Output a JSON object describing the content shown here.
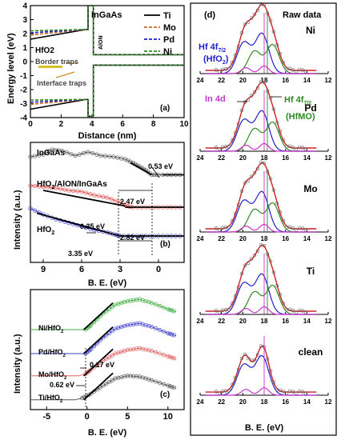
{
  "chart_data": [
    {
      "type": "line",
      "panel_label": "(a)",
      "xlabel": "Distance (nm)",
      "ylabel": "Energy level (eV)",
      "xlim": [
        0,
        10
      ],
      "ylim": [
        -4,
        4
      ],
      "x_ticks": [
        "0",
        "2",
        "4",
        "6",
        "8",
        "10"
      ],
      "y_ticks": [
        "-4",
        "-3",
        "-2",
        "-1",
        "0",
        "1",
        "2",
        "3",
        "4"
      ],
      "region_labels": [
        "HfO2",
        "InGaAs",
        "AlON"
      ],
      "annotations": [
        "Border traps",
        "Interface traps"
      ],
      "legend": {
        "placement": "top-right",
        "entries": [
          "Ti",
          "Mo",
          "Pd",
          "Ni"
        ]
      },
      "series": [
        {
          "name": "Ti",
          "color": "#000000",
          "dash": "solid",
          "cb": [
            [
              0,
              1.6
            ],
            [
              3.6,
              2.3
            ],
            [
              3.75,
              2.3
            ],
            [
              3.75,
              4.0
            ],
            [
              4.1,
              4.0
            ],
            [
              4.1,
              0.5
            ],
            [
              4.3,
              0.5
            ],
            [
              10,
              0.5
            ]
          ],
          "vb": [
            [
              0,
              -3.4
            ],
            [
              3.6,
              -2.7
            ],
            [
              3.75,
              -2.7
            ],
            [
              3.75,
              -3.9
            ],
            [
              4.1,
              -3.9
            ],
            [
              4.1,
              -0.25
            ],
            [
              4.3,
              -0.25
            ],
            [
              10,
              -0.25
            ]
          ]
        },
        {
          "name": "Mo",
          "color": "#d2691e",
          "dash": "dash",
          "cb": [
            [
              0,
              1.9
            ],
            [
              3.6,
              2.3
            ],
            [
              3.75,
              2.3
            ],
            [
              3.75,
              4.0
            ],
            [
              4.1,
              4.0
            ],
            [
              4.1,
              0.5
            ],
            [
              4.3,
              0.5
            ],
            [
              10,
              0.5
            ]
          ],
          "vb": [
            [
              0,
              -3.05
            ],
            [
              3.6,
              -2.7
            ],
            [
              3.75,
              -2.7
            ],
            [
              3.75,
              -3.9
            ],
            [
              4.1,
              -3.9
            ],
            [
              4.1,
              -0.25
            ],
            [
              4.3,
              -0.25
            ],
            [
              10,
              -0.25
            ]
          ]
        },
        {
          "name": "Pd",
          "color": "#1f1fcc",
          "dash": "dash",
          "cb": [
            [
              0,
              2.05
            ],
            [
              3.6,
              2.3
            ],
            [
              3.75,
              2.3
            ],
            [
              3.75,
              4.0
            ],
            [
              4.1,
              4.0
            ],
            [
              4.1,
              0.5
            ],
            [
              4.3,
              0.5
            ],
            [
              10,
              0.5
            ]
          ],
          "vb": [
            [
              0,
              -2.9
            ],
            [
              3.6,
              -2.7
            ],
            [
              3.75,
              -2.7
            ],
            [
              3.75,
              -3.9
            ],
            [
              4.1,
              -3.9
            ],
            [
              4.1,
              -0.25
            ],
            [
              4.3,
              -0.25
            ],
            [
              10,
              -0.25
            ]
          ]
        },
        {
          "name": "Ni",
          "color": "#2e8b22",
          "dash": "dash",
          "cb": [
            [
              0,
              2.2
            ],
            [
              3.6,
              2.3
            ],
            [
              3.75,
              2.3
            ],
            [
              3.75,
              4.0
            ],
            [
              4.1,
              4.0
            ],
            [
              4.1,
              0.5
            ],
            [
              4.3,
              0.5
            ],
            [
              10,
              0.5
            ]
          ],
          "vb": [
            [
              0,
              -2.75
            ],
            [
              3.6,
              -2.7
            ],
            [
              3.75,
              -2.7
            ],
            [
              3.75,
              -3.9
            ],
            [
              4.1,
              -3.9
            ],
            [
              4.1,
              -0.25
            ],
            [
              4.3,
              -0.25
            ],
            [
              10,
              -0.25
            ]
          ]
        }
      ]
    },
    {
      "type": "line",
      "panel_label": "(b)",
      "xlabel": "B. E. (eV)",
      "ylabel": "Intensity (a.u.)",
      "xlim": [
        10,
        -2
      ],
      "x_ticks": [
        "9",
        "6",
        "3",
        "0"
      ],
      "series": [
        {
          "name": "InGaAs",
          "color": "#555555",
          "x": [
            10,
            9,
            8.3,
            7.5,
            6.5,
            5.5,
            4.5,
            3.5,
            2.6,
            2.0,
            1.5,
            1.0,
            0.53,
            0,
            -1,
            -2
          ],
          "y": [
            0.88,
            0.9,
            0.94,
            0.93,
            0.89,
            0.92,
            0.89,
            0.88,
            0.86,
            0.83,
            0.8,
            0.77,
            0.73,
            0.73,
            0.73,
            0.73
          ]
        },
        {
          "name": "HfO2/AlON/InGaAs",
          "color": "#e05050",
          "x": [
            10,
            9,
            8,
            7,
            6,
            5,
            4,
            3,
            2.47,
            2,
            1,
            0,
            -1,
            -2
          ],
          "y": [
            0.64,
            0.63,
            0.62,
            0.6,
            0.59,
            0.56,
            0.54,
            0.5,
            0.47,
            0.46,
            0.46,
            0.46,
            0.46,
            0.46
          ]
        },
        {
          "name": "HfO2",
          "color": "#3a3ad0",
          "x": [
            10,
            9,
            8,
            7,
            6,
            5,
            4,
            3.35,
            3,
            2,
            1,
            0,
            -1,
            -2
          ],
          "y": [
            0.45,
            0.4,
            0.36,
            0.33,
            0.3,
            0.27,
            0.25,
            0.23,
            0.22,
            0.22,
            0.22,
            0.22,
            0.22,
            0.22
          ]
        }
      ],
      "annotations": [
        "0.53 eV",
        "2.47 eV",
        "0.35 eV",
        "2.82 eV",
        "3.35 eV"
      ]
    },
    {
      "type": "line",
      "panel_label": "(c)",
      "xlabel": "B. E. (eV)",
      "ylabel": "Intensity (a.u.)",
      "xlim": [
        -7,
        12
      ],
      "x_ticks": [
        "-5",
        "0",
        "5",
        "10"
      ],
      "series": [
        {
          "name": "Ni/HfO2",
          "color": "#3fae3f",
          "x": [
            -7,
            -1,
            -0.2,
            0.5,
            2,
            3.5,
            5,
            6.5,
            8,
            10,
            11
          ],
          "y": [
            0.9,
            0.9,
            0.9,
            0.95,
            1.08,
            1.18,
            1.22,
            1.24,
            1.2,
            1.13,
            1.1
          ]
        },
        {
          "name": "Pd/HfO2",
          "color": "#4040d0",
          "x": [
            -7,
            -1,
            -0.2,
            0.5,
            2,
            3.5,
            5,
            6.5,
            8,
            10,
            11
          ],
          "y": [
            0.63,
            0.63,
            0.63,
            0.68,
            0.81,
            0.91,
            0.95,
            0.97,
            0.93,
            0.86,
            0.83
          ]
        },
        {
          "name": "Mo/HfO2",
          "color": "#e06060",
          "x": [
            -7,
            -1,
            -0.2,
            0.5,
            2,
            3.5,
            5,
            6.5,
            8,
            10,
            11
          ],
          "y": [
            0.38,
            0.38,
            0.4,
            0.45,
            0.55,
            0.63,
            0.67,
            0.69,
            0.66,
            0.6,
            0.57
          ]
        },
        {
          "name": "Ti/HfO2",
          "color": "#555555",
          "x": [
            -7,
            -1.5,
            -0.62,
            0.5,
            2,
            3.5,
            5,
            6.5,
            8,
            10,
            11
          ],
          "y": [
            0.11,
            0.11,
            0.13,
            0.18,
            0.27,
            0.35,
            0.38,
            0.37,
            0.33,
            0.27,
            0.24
          ]
        }
      ],
      "annotations": [
        "0.17 eV",
        "0.62 eV"
      ]
    },
    {
      "type": "line",
      "panel_label": "(d)",
      "xlabel": "B. E. (eV)",
      "xlim": [
        24,
        12
      ],
      "x_ticks": [
        "24",
        "22",
        "20",
        "18",
        "16",
        "14",
        "12"
      ],
      "labels": {
        "raw": "Raw data",
        "hf_main": "Hf 4f",
        "hf_main_sub": "7/2",
        "hf_main_2": "(HfO",
        "hf_main_2_sub": "2",
        "hf_main_2_end": ")",
        "in4d": "In 4d",
        "hf_mo": "Hf 4f",
        "hf_mo_sub": "7/2",
        "hf_mo_2": "(HfMO)"
      },
      "samples": [
        "Ni",
        "Pd",
        "Mo",
        "Ti",
        "clean"
      ],
      "components": {
        "hfo2_center": 18.2,
        "hfmo_center": 17.2,
        "in4d_center": 18.0,
        "colors": {
          "envelope": "#cc2222",
          "raw": "#555555",
          "hfo2": "#1f1fcc",
          "hfmo": "#2e8b22",
          "in4d": "#cc33cc"
        }
      }
    }
  ]
}
